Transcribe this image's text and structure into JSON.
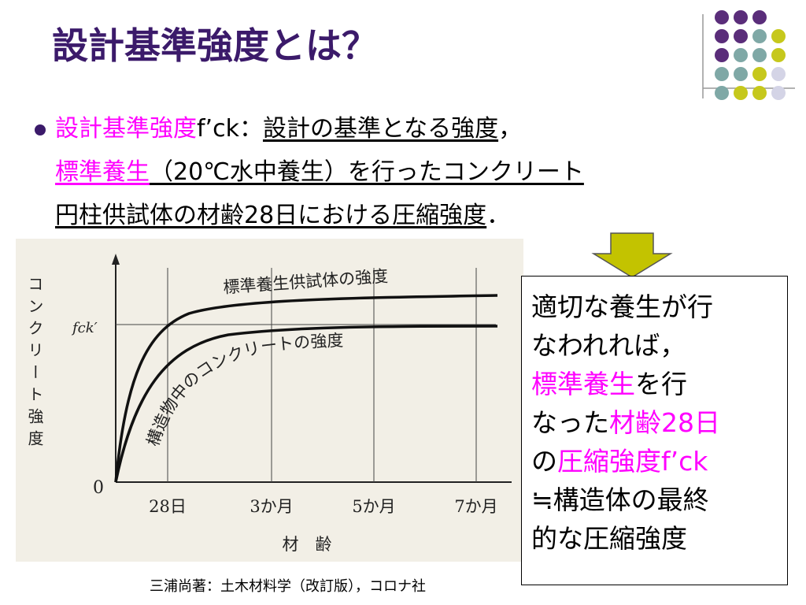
{
  "title": "設計基準強度とは？",
  "bullet": {
    "lines": [
      [
        "設計基準強度",
        "f’ck：",
        "設計の基準となる強度",
        "，"
      ],
      [
        "標準養生",
        "（20℃水中養生）を行ったコンクリート"
      ],
      [
        "円柱供試体の材齢28日における圧縮強度",
        "．"
      ]
    ]
  },
  "figure": {
    "y_label": "コンクリート強度",
    "fck_label": "fck′",
    "origin_label": "0",
    "x_ticks": [
      "28日",
      "3か月",
      "5か月",
      "7か月"
    ],
    "x_label": "材　齢",
    "curve_labels": [
      "標準養生供試体の強度",
      "構造物中のコンクリートの強度"
    ]
  },
  "caption": "三浦尚著：土木材料学（改訂版），コロナ社",
  "note_box": {
    "lines": [
      [
        "適切な養生が行"
      ],
      [
        "なわれれば，"
      ],
      [
        "標準養生",
        "を行"
      ],
      [
        "なった",
        "材齢28日"
      ],
      [
        "の",
        "圧縮強度f’ck"
      ],
      [
        "≒構造体の最終"
      ],
      [
        "的な圧縮強度"
      ]
    ]
  }
}
